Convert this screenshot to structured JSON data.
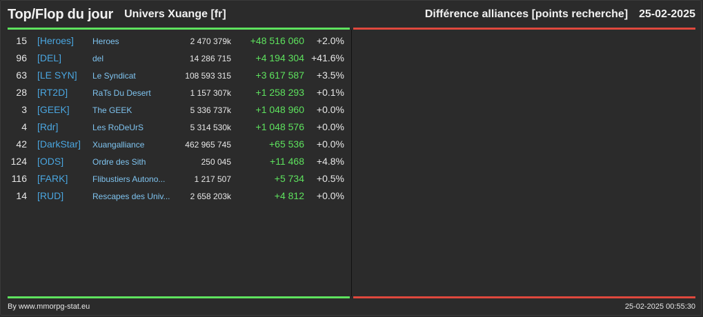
{
  "header": {
    "title": "Top/Flop du jour",
    "subtitle": "Univers Xuange [fr]",
    "right_title": "Différence alliances [points recherche]",
    "date": "25-02-2025"
  },
  "colors": {
    "top_accent": "#5ee35e",
    "flop_accent": "#e0483d",
    "tag": "#4aa6e0",
    "background": "#2b2b2b"
  },
  "top_rows": [
    {
      "rank": "15",
      "tag": "[Heroes]",
      "name": "Heroes",
      "points": "2 470 379k",
      "diff": "+48 516 060",
      "pct": "+2.0%"
    },
    {
      "rank": "96",
      "tag": "[DEL]",
      "name": "del",
      "points": "14 286 715",
      "diff": "+4 194 304",
      "pct": "+41.6%"
    },
    {
      "rank": "63",
      "tag": "[LE SYN]",
      "name": "Le Syndicat",
      "points": "108 593 315",
      "diff": "+3 617 587",
      "pct": "+3.5%"
    },
    {
      "rank": "28",
      "tag": "[RT2D]",
      "name": "RaTs Du Desert",
      "points": "1 157 307k",
      "diff": "+1 258 293",
      "pct": "+0.1%"
    },
    {
      "rank": "3",
      "tag": "[GEEK]",
      "name": "The GEEK",
      "points": "5 336 737k",
      "diff": "+1 048 960",
      "pct": "+0.0%"
    },
    {
      "rank": "4",
      "tag": "[Rdr]",
      "name": "Les RoDeUrS",
      "points": "5 314 530k",
      "diff": "+1 048 576",
      "pct": "+0.0%"
    },
    {
      "rank": "42",
      "tag": "[DarkStar]",
      "name": "Xuangalliance",
      "points": "462 965 745",
      "diff": "+65 536",
      "pct": "+0.0%"
    },
    {
      "rank": "124",
      "tag": "[ODS]",
      "name": "Ordre des Sith",
      "points": "250 045",
      "diff": "+11 468",
      "pct": "+4.8%"
    },
    {
      "rank": "116",
      "tag": "[FARK]",
      "name": "Flibustiers Autono...",
      "points": "1 217 507",
      "diff": "+5 734",
      "pct": "+0.5%"
    },
    {
      "rank": "14",
      "tag": "[RUD]",
      "name": "Rescapes des Univ...",
      "points": "2 658 203k",
      "diff": "+4 812",
      "pct": "+0.0%"
    }
  ],
  "footer": {
    "credit": "By www.mmorpg-stat.eu",
    "timestamp": "25-02-2025 00:55:30"
  }
}
